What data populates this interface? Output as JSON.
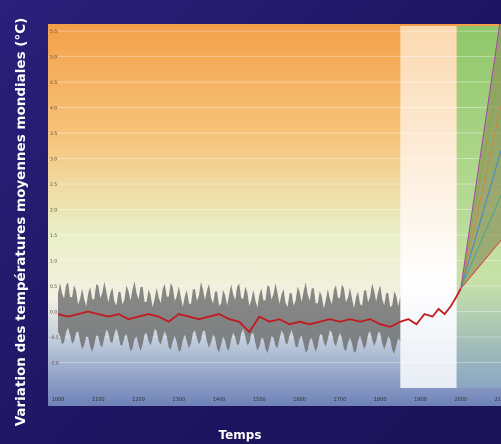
{
  "chart_data": {
    "type": "line",
    "title": "",
    "xlabel": "Temps",
    "ylabel": "Variation des températures moyennes mondiales (°C)",
    "xlim": [
      1000,
      2100
    ],
    "ylim": [
      -1.5,
      5.6
    ],
    "x_ticks": [
      1000,
      1100,
      1200,
      1300,
      1400,
      1500,
      1600,
      1700,
      1800,
      1900,
      2000,
      2100
    ],
    "y_ticks": [
      -1.0,
      -0.5,
      0.0,
      0.5,
      1.0,
      1.5,
      2.0,
      2.5,
      3.0,
      3.5,
      4.0,
      4.5,
      5.0,
      5.5
    ],
    "grid": true,
    "regions": [
      {
        "x_start": 1850,
        "x_end": 1990,
        "color": "#fffbe8"
      },
      {
        "x_start": 1990,
        "x_end": 2100,
        "color": "#a7d36c"
      }
    ],
    "series": [
      {
        "color": "#c2191f",
        "x": [
          1000,
          1025,
          1050,
          1075,
          1100,
          1125,
          1150,
          1175,
          1200,
          1225,
          1250,
          1275,
          1300,
          1325,
          1350,
          1375,
          1400,
          1425,
          1450,
          1475,
          1500,
          1525,
          1550,
          1575,
          1600,
          1625,
          1650,
          1675,
          1700,
          1725,
          1750,
          1775,
          1800,
          1825,
          1850,
          1870,
          1890,
          1910,
          1930,
          1945,
          1960,
          1975,
          1990,
          2000
        ],
        "y": [
          -0.05,
          -0.1,
          -0.05,
          0.0,
          -0.05,
          -0.1,
          -0.05,
          -0.15,
          -0.1,
          -0.05,
          -0.1,
          -0.2,
          -0.05,
          -0.1,
          -0.15,
          -0.1,
          -0.05,
          -0.15,
          -0.2,
          -0.4,
          -0.1,
          -0.2,
          -0.15,
          -0.25,
          -0.2,
          -0.25,
          -0.2,
          -0.15,
          -0.2,
          -0.15,
          -0.2,
          -0.15,
          -0.25,
          -0.3,
          -0.2,
          -0.15,
          -0.25,
          -0.05,
          -0.1,
          0.05,
          -0.05,
          0.1,
          0.3,
          0.45
        ]
      },
      {
        "color": "#7a7a6a",
        "x": [
          2000,
          2100
        ],
        "y": [
          0.45,
          4.9
        ],
        "band_low": [
          0.45,
          1.4
        ],
        "band_high": [
          0.45,
          5.8
        ]
      }
    ],
    "uncertainty_band": {
      "color": "#6b6b6b",
      "x": [
        1000,
        1850
      ],
      "y_low": [
        -0.55,
        -0.6
      ],
      "y_high": [
        0.35,
        0.3
      ]
    }
  }
}
